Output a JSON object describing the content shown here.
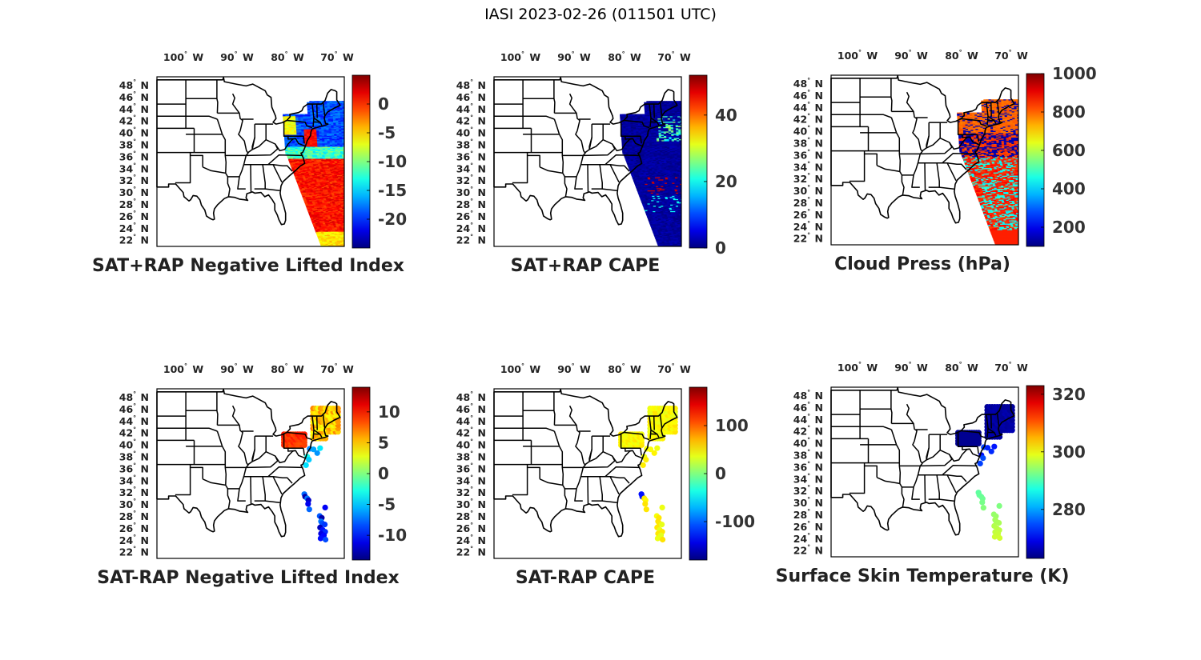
{
  "figure_title": "IASI 2023-02-26 (011501 UTC)",
  "map": {
    "lon_ticks": [
      "100",
      "90",
      "80",
      "70"
    ],
    "lon_suffix": "W",
    "lat_ticks": [
      "48",
      "46",
      "44",
      "42",
      "40",
      "38",
      "36",
      "34",
      "32",
      "30",
      "28",
      "26",
      "24",
      "22"
    ],
    "lat_suffix": "N",
    "degree_mark": "°"
  },
  "panels": [
    {
      "id": "p1",
      "title": "SAT+RAP Negative Lifted Index",
      "colorbar": {
        "min": -25,
        "max": 5,
        "ticks": [
          "0",
          "-5",
          "-10",
          "-15",
          "-20"
        ]
      },
      "field": "swath_li"
    },
    {
      "id": "p2",
      "title": "SAT+RAP CAPE",
      "colorbar": {
        "min": 0,
        "max": 52,
        "ticks": [
          "40",
          "20",
          "0"
        ]
      },
      "field": "swath_cape"
    },
    {
      "id": "p3",
      "title": "Cloud Press (hPa)",
      "colorbar": {
        "min": 100,
        "max": 1000,
        "ticks": [
          "1000",
          "800",
          "600",
          "400",
          "200"
        ]
      },
      "field": "swath_cloud"
    },
    {
      "id": "p4",
      "title": "SAT-RAP Negative Lifted Index",
      "colorbar": {
        "min": -14,
        "max": 14,
        "ticks": [
          "10",
          "5",
          "0",
          "-5",
          "-10"
        ]
      },
      "field": "dots_li"
    },
    {
      "id": "p5",
      "title": "SAT-RAP CAPE",
      "colorbar": {
        "min": -180,
        "max": 180,
        "ticks": [
          "100",
          "0",
          "-100"
        ]
      },
      "field": "dots_cape"
    },
    {
      "id": "p6",
      "title": "Surface Skin Temperature (K)",
      "colorbar": {
        "min": 263,
        "max": 323,
        "ticks": [
          "320",
          "300",
          "280"
        ]
      },
      "field": "dots_skin"
    }
  ],
  "colors": {
    "colormap": "jet",
    "map_lines": "#000000"
  }
}
